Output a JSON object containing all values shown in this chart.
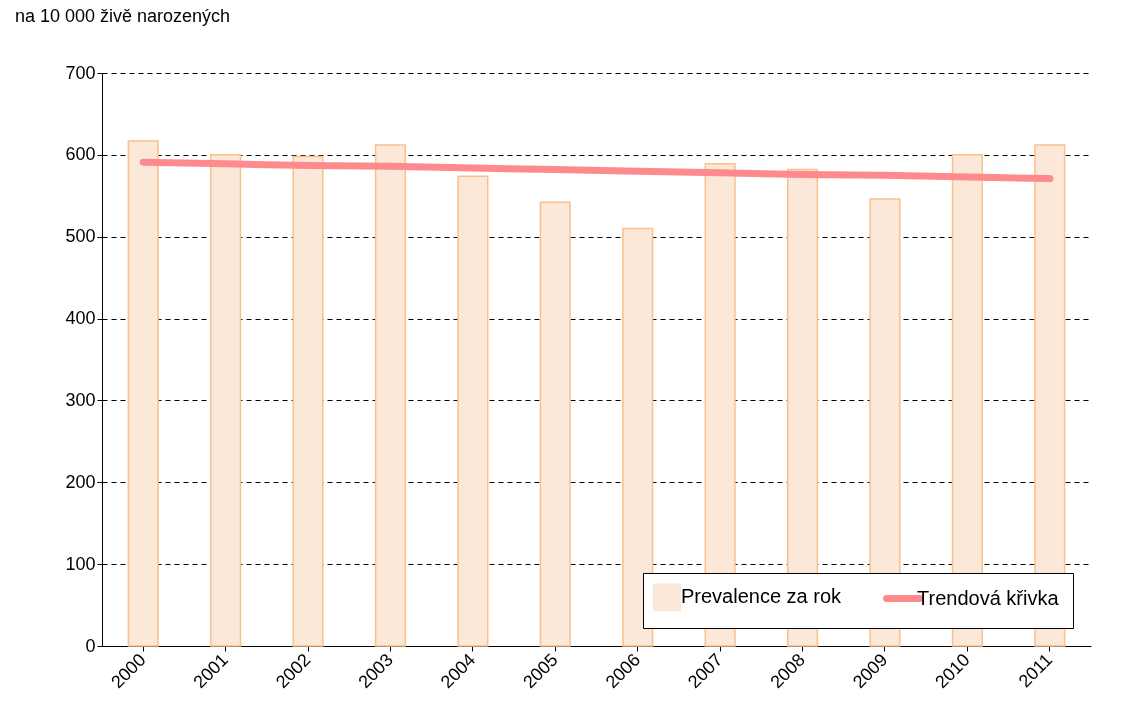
{
  "chart_data": {
    "type": "bar",
    "subtitle": "na 10 000 živě narozených",
    "categories": [
      "2000",
      "2001",
      "2002",
      "2003",
      "2004",
      "2005",
      "2006",
      "2007",
      "2008",
      "2009",
      "2010",
      "2011"
    ],
    "series": [
      {
        "name": "Prevalence za rok",
        "color": "#fce8d8",
        "values": [
          617,
          600,
          598,
          612,
          574,
          542,
          510,
          589,
          582,
          546,
          600,
          612
        ]
      },
      {
        "name": "Trendová křivka",
        "type": "line",
        "color": "#ff8a8e",
        "values": [
          591,
          589,
          587,
          586,
          584,
          582,
          580,
          578,
          576,
          575,
          573,
          571
        ]
      }
    ],
    "ylim": [
      0,
      700
    ],
    "yticks": [
      0,
      100,
      200,
      300,
      400,
      500,
      600,
      700
    ],
    "grid": "y",
    "legend": "bottom right"
  }
}
